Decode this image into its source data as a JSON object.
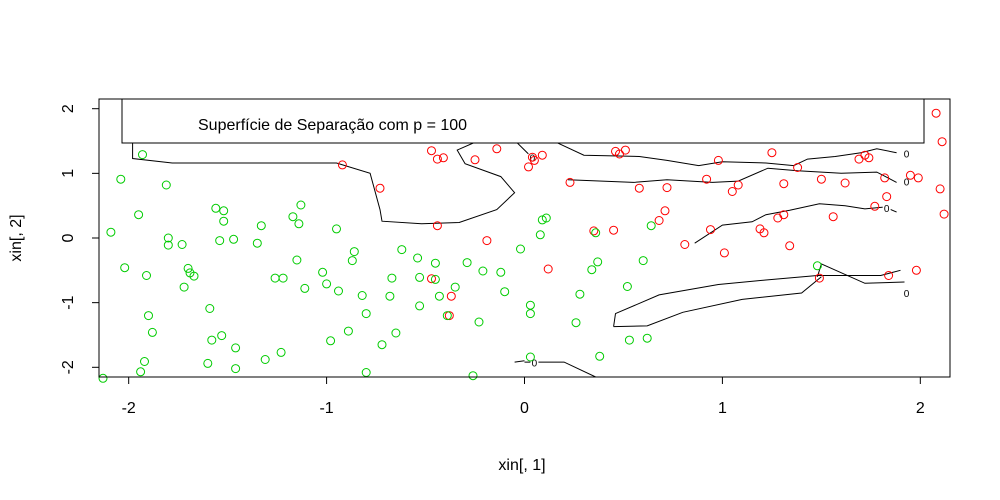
{
  "chart_data": {
    "type": "scatter",
    "title": "",
    "xlabel": "xin[, 1]",
    "ylabel": "xin[, 2]",
    "xlim": [
      -2.15,
      2.15
    ],
    "ylim": [
      -2.15,
      2.15
    ],
    "xticks": [
      "-2",
      "-1",
      "0",
      "1",
      "2"
    ],
    "yticks": [
      "-2",
      "-1",
      "0",
      "1",
      "2"
    ],
    "grid": false,
    "legend": {
      "text": "Superfície de Separação com p = 100",
      "placement": "top-left"
    },
    "colors": {
      "class_red": "#ff0000",
      "class_green": "#00cc00",
      "contour": "#000000"
    },
    "contour_label": "0",
    "series": [
      {
        "color": "#ff0000",
        "points": [
          [
            -0.92,
            1.13
          ],
          [
            -0.73,
            0.77
          ],
          [
            -0.47,
            1.35
          ],
          [
            -0.44,
            1.22
          ],
          [
            -0.41,
            1.24
          ],
          [
            -0.25,
            1.21
          ],
          [
            -0.14,
            1.38
          ],
          [
            0.02,
            1.1
          ],
          [
            0.05,
            1.2
          ],
          [
            0.09,
            1.28
          ],
          [
            0.23,
            0.86
          ],
          [
            0.46,
            1.34
          ],
          [
            0.48,
            1.3
          ],
          [
            0.51,
            1.36
          ],
          [
            0.58,
            0.77
          ],
          [
            0.68,
            0.27
          ],
          [
            0.71,
            0.42
          ],
          [
            0.72,
            0.78
          ],
          [
            0.81,
            -0.1
          ],
          [
            0.92,
            0.91
          ],
          [
            0.94,
            0.13
          ],
          [
            0.98,
            1.2
          ],
          [
            1.01,
            -0.23
          ],
          [
            1.05,
            0.72
          ],
          [
            1.08,
            0.82
          ],
          [
            1.19,
            0.14
          ],
          [
            1.21,
            0.08
          ],
          [
            1.25,
            1.32
          ],
          [
            1.28,
            0.31
          ],
          [
            1.31,
            0.36
          ],
          [
            1.31,
            0.84
          ],
          [
            1.34,
            -0.12
          ],
          [
            1.38,
            1.09
          ],
          [
            1.5,
            0.91
          ],
          [
            1.56,
            0.33
          ],
          [
            1.49,
            -0.62
          ],
          [
            1.62,
            0.85
          ],
          [
            1.69,
            1.22
          ],
          [
            1.72,
            1.28
          ],
          [
            1.74,
            1.24
          ],
          [
            1.77,
            0.49
          ],
          [
            1.82,
            0.93
          ],
          [
            1.83,
            0.64
          ],
          [
            1.84,
            -0.58
          ],
          [
            1.95,
            0.97
          ],
          [
            1.99,
            0.93
          ],
          [
            1.98,
            -0.5
          ],
          [
            2.08,
            1.93
          ],
          [
            2.11,
            1.49
          ],
          [
            2.1,
            0.76
          ],
          [
            2.12,
            0.37
          ],
          [
            -0.44,
            0.19
          ],
          [
            -0.37,
            -0.9
          ],
          [
            -0.38,
            -1.2
          ],
          [
            -0.47,
            -0.63
          ],
          [
            -0.19,
            -0.04
          ],
          [
            0.12,
            -0.48
          ],
          [
            0.35,
            0.11
          ],
          [
            0.45,
            0.12
          ],
          [
            0.04,
            1.25
          ]
        ]
      },
      {
        "color": "#00cc00",
        "points": [
          [
            -1.93,
            1.29
          ],
          [
            -2.04,
            0.91
          ],
          [
            -1.95,
            0.36
          ],
          [
            -1.81,
            0.82
          ],
          [
            -2.09,
            0.09
          ],
          [
            -2.02,
            -0.46
          ],
          [
            -1.91,
            -0.58
          ],
          [
            -1.8,
            -0.11
          ],
          [
            -1.8,
            0.0
          ],
          [
            -1.73,
            -0.1
          ],
          [
            -1.7,
            -0.47
          ],
          [
            -1.69,
            -0.54
          ],
          [
            -1.72,
            -0.76
          ],
          [
            -1.9,
            -1.2
          ],
          [
            -1.88,
            -1.46
          ],
          [
            -1.92,
            -1.91
          ],
          [
            -1.94,
            -2.07
          ],
          [
            -2.13,
            -2.17
          ],
          [
            -1.67,
            -0.59
          ],
          [
            -1.56,
            0.46
          ],
          [
            -1.52,
            0.42
          ],
          [
            -1.52,
            0.26
          ],
          [
            -1.54,
            -0.04
          ],
          [
            -1.47,
            -0.02
          ],
          [
            -1.59,
            -1.09
          ],
          [
            -1.53,
            -1.51
          ],
          [
            -1.58,
            -1.58
          ],
          [
            -1.46,
            -1.7
          ],
          [
            -1.6,
            -1.94
          ],
          [
            -1.46,
            -2.02
          ],
          [
            -1.33,
            0.19
          ],
          [
            -1.26,
            -0.62
          ],
          [
            -1.22,
            -0.62
          ],
          [
            -1.35,
            -0.08
          ],
          [
            -1.23,
            -1.77
          ],
          [
            -1.31,
            -1.88
          ],
          [
            -1.17,
            0.33
          ],
          [
            -1.13,
            0.51
          ],
          [
            -1.14,
            0.22
          ],
          [
            -1.15,
            -0.34
          ],
          [
            -1.11,
            -0.78
          ],
          [
            -1.02,
            -0.53
          ],
          [
            -1.0,
            -0.71
          ],
          [
            -0.98,
            -1.59
          ],
          [
            -0.95,
            0.14
          ],
          [
            -0.94,
            -0.82
          ],
          [
            -0.89,
            -1.44
          ],
          [
            -0.87,
            -0.35
          ],
          [
            -0.86,
            -0.21
          ],
          [
            -0.82,
            -0.89
          ],
          [
            -0.8,
            -1.17
          ],
          [
            -0.8,
            -2.08
          ],
          [
            -0.72,
            -1.65
          ],
          [
            -0.68,
            -0.9
          ],
          [
            -0.67,
            -0.62
          ],
          [
            -0.65,
            -1.47
          ],
          [
            -0.62,
            -0.18
          ],
          [
            -0.54,
            -0.31
          ],
          [
            -0.53,
            -0.61
          ],
          [
            -0.53,
            -1.05
          ],
          [
            -0.45,
            -0.39
          ],
          [
            -0.45,
            -0.64
          ],
          [
            -0.43,
            -0.9
          ],
          [
            -0.39,
            -1.2
          ],
          [
            -0.35,
            -0.76
          ],
          [
            -0.29,
            -0.38
          ],
          [
            -0.23,
            -1.3
          ],
          [
            -0.21,
            -0.51
          ],
          [
            -0.12,
            -0.53
          ],
          [
            -0.1,
            -0.83
          ],
          [
            -0.02,
            -0.17
          ],
          [
            0.03,
            -1.04
          ],
          [
            0.03,
            -1.17
          ],
          [
            0.03,
            -1.84
          ],
          [
            0.08,
            0.05
          ],
          [
            0.09,
            0.28
          ],
          [
            0.26,
            -1.31
          ],
          [
            0.28,
            -0.87
          ],
          [
            0.34,
            -0.49
          ],
          [
            0.36,
            0.08
          ],
          [
            0.37,
            -0.37
          ],
          [
            0.38,
            -1.83
          ],
          [
            0.52,
            -0.75
          ],
          [
            0.53,
            -1.58
          ],
          [
            0.6,
            -0.35
          ],
          [
            0.62,
            -1.55
          ],
          [
            0.64,
            0.19
          ],
          [
            1.48,
            -0.43
          ],
          [
            -0.26,
            -2.13
          ],
          [
            0.11,
            0.31
          ]
        ]
      }
    ],
    "contour_lines": [
      [
        [
          -2.03,
          2.13
        ],
        [
          -2.03,
          1.48
        ],
        [
          -0.95,
          1.48
        ],
        [
          -0.95,
          2.13
        ]
      ],
      [
        [
          1.77,
          2.13
        ],
        [
          0.26,
          2.13
        ],
        [
          0.26,
          1.48
        ],
        [
          -0.95,
          1.48
        ]
      ],
      [
        [
          -1.98,
          1.48
        ],
        [
          -1.98,
          1.23
        ],
        [
          -1.78,
          1.16
        ],
        [
          -0.95,
          1.16
        ],
        [
          -0.78,
          1.0
        ],
        [
          -0.73,
          0.44
        ],
        [
          -0.72,
          0.26
        ],
        [
          -0.52,
          0.22
        ],
        [
          -0.33,
          0.24
        ],
        [
          -0.14,
          0.44
        ],
        [
          -0.05,
          0.7
        ],
        [
          -0.12,
          0.95
        ],
        [
          -0.3,
          1.15
        ],
        [
          -0.34,
          1.36
        ],
        [
          -0.25,
          1.48
        ],
        [
          -0.04,
          1.48
        ],
        [
          0.02,
          1.3
        ]
      ],
      [
        [
          0.22,
          0.9
        ],
        [
          0.55,
          0.86
        ],
        [
          0.72,
          0.9
        ],
        [
          0.95,
          0.86
        ],
        [
          1.08,
          0.88
        ],
        [
          1.23,
          1.08
        ],
        [
          1.38,
          1.04
        ],
        [
          1.6,
          1.0
        ],
        [
          1.78,
          1.02
        ],
        [
          1.88,
          0.86
        ]
      ],
      [
        [
          0.16,
          1.48
        ],
        [
          0.3,
          1.28
        ],
        [
          0.58,
          1.26
        ],
        [
          0.72,
          1.2
        ],
        [
          0.88,
          1.12
        ],
        [
          1.0,
          1.18
        ],
        [
          1.22,
          1.16
        ],
        [
          1.36,
          1.12
        ],
        [
          1.43,
          1.22
        ],
        [
          1.57,
          1.26
        ],
        [
          1.7,
          1.32
        ],
        [
          1.78,
          1.38
        ],
        [
          1.88,
          1.32
        ]
      ],
      [
        [
          1.52,
          1.97
        ],
        [
          1.77,
          1.97
        ],
        [
          1.9,
          1.88
        ]
      ],
      [
        [
          0.86,
          -0.08
        ],
        [
          1.0,
          0.2
        ],
        [
          1.15,
          0.25
        ],
        [
          1.22,
          0.36
        ],
        [
          1.34,
          0.43
        ],
        [
          1.49,
          0.53
        ],
        [
          1.62,
          0.5
        ],
        [
          1.72,
          0.45
        ],
        [
          1.82,
          0.48
        ],
        [
          1.88,
          0.4
        ]
      ],
      [
        [
          1.48,
          -0.6
        ],
        [
          1.5,
          -0.4
        ],
        [
          1.72,
          -0.7
        ],
        [
          1.92,
          -0.68
        ]
      ],
      [
        [
          0.45,
          -1.37
        ],
        [
          0.46,
          -1.17
        ],
        [
          0.68,
          -0.88
        ],
        [
          0.98,
          -0.72
        ],
        [
          1.22,
          -0.65
        ],
        [
          1.48,
          -0.58
        ],
        [
          1.8,
          -0.58
        ],
        [
          1.9,
          -0.5
        ]
      ],
      [
        [
          1.5,
          -0.6
        ],
        [
          1.4,
          -0.85
        ],
        [
          1.1,
          -0.95
        ],
        [
          0.8,
          -1.15
        ],
        [
          0.62,
          -1.36
        ],
        [
          0.45,
          -1.37
        ]
      ],
      [
        [
          0.0,
          -1.92
        ],
        [
          0.2,
          -1.92
        ],
        [
          0.36,
          -2.15
        ]
      ],
      [
        [
          -0.05,
          -1.92
        ],
        [
          0.0,
          -1.9
        ]
      ]
    ],
    "contour_label_positions": [
      [
        1.93,
        1.69
      ],
      [
        1.93,
        1.29
      ],
      [
        1.93,
        0.86
      ],
      [
        1.83,
        0.45
      ],
      [
        1.93,
        -0.87
      ],
      [
        0.05,
        -1.94
      ],
      [
        0.04,
        1.23
      ]
    ]
  }
}
